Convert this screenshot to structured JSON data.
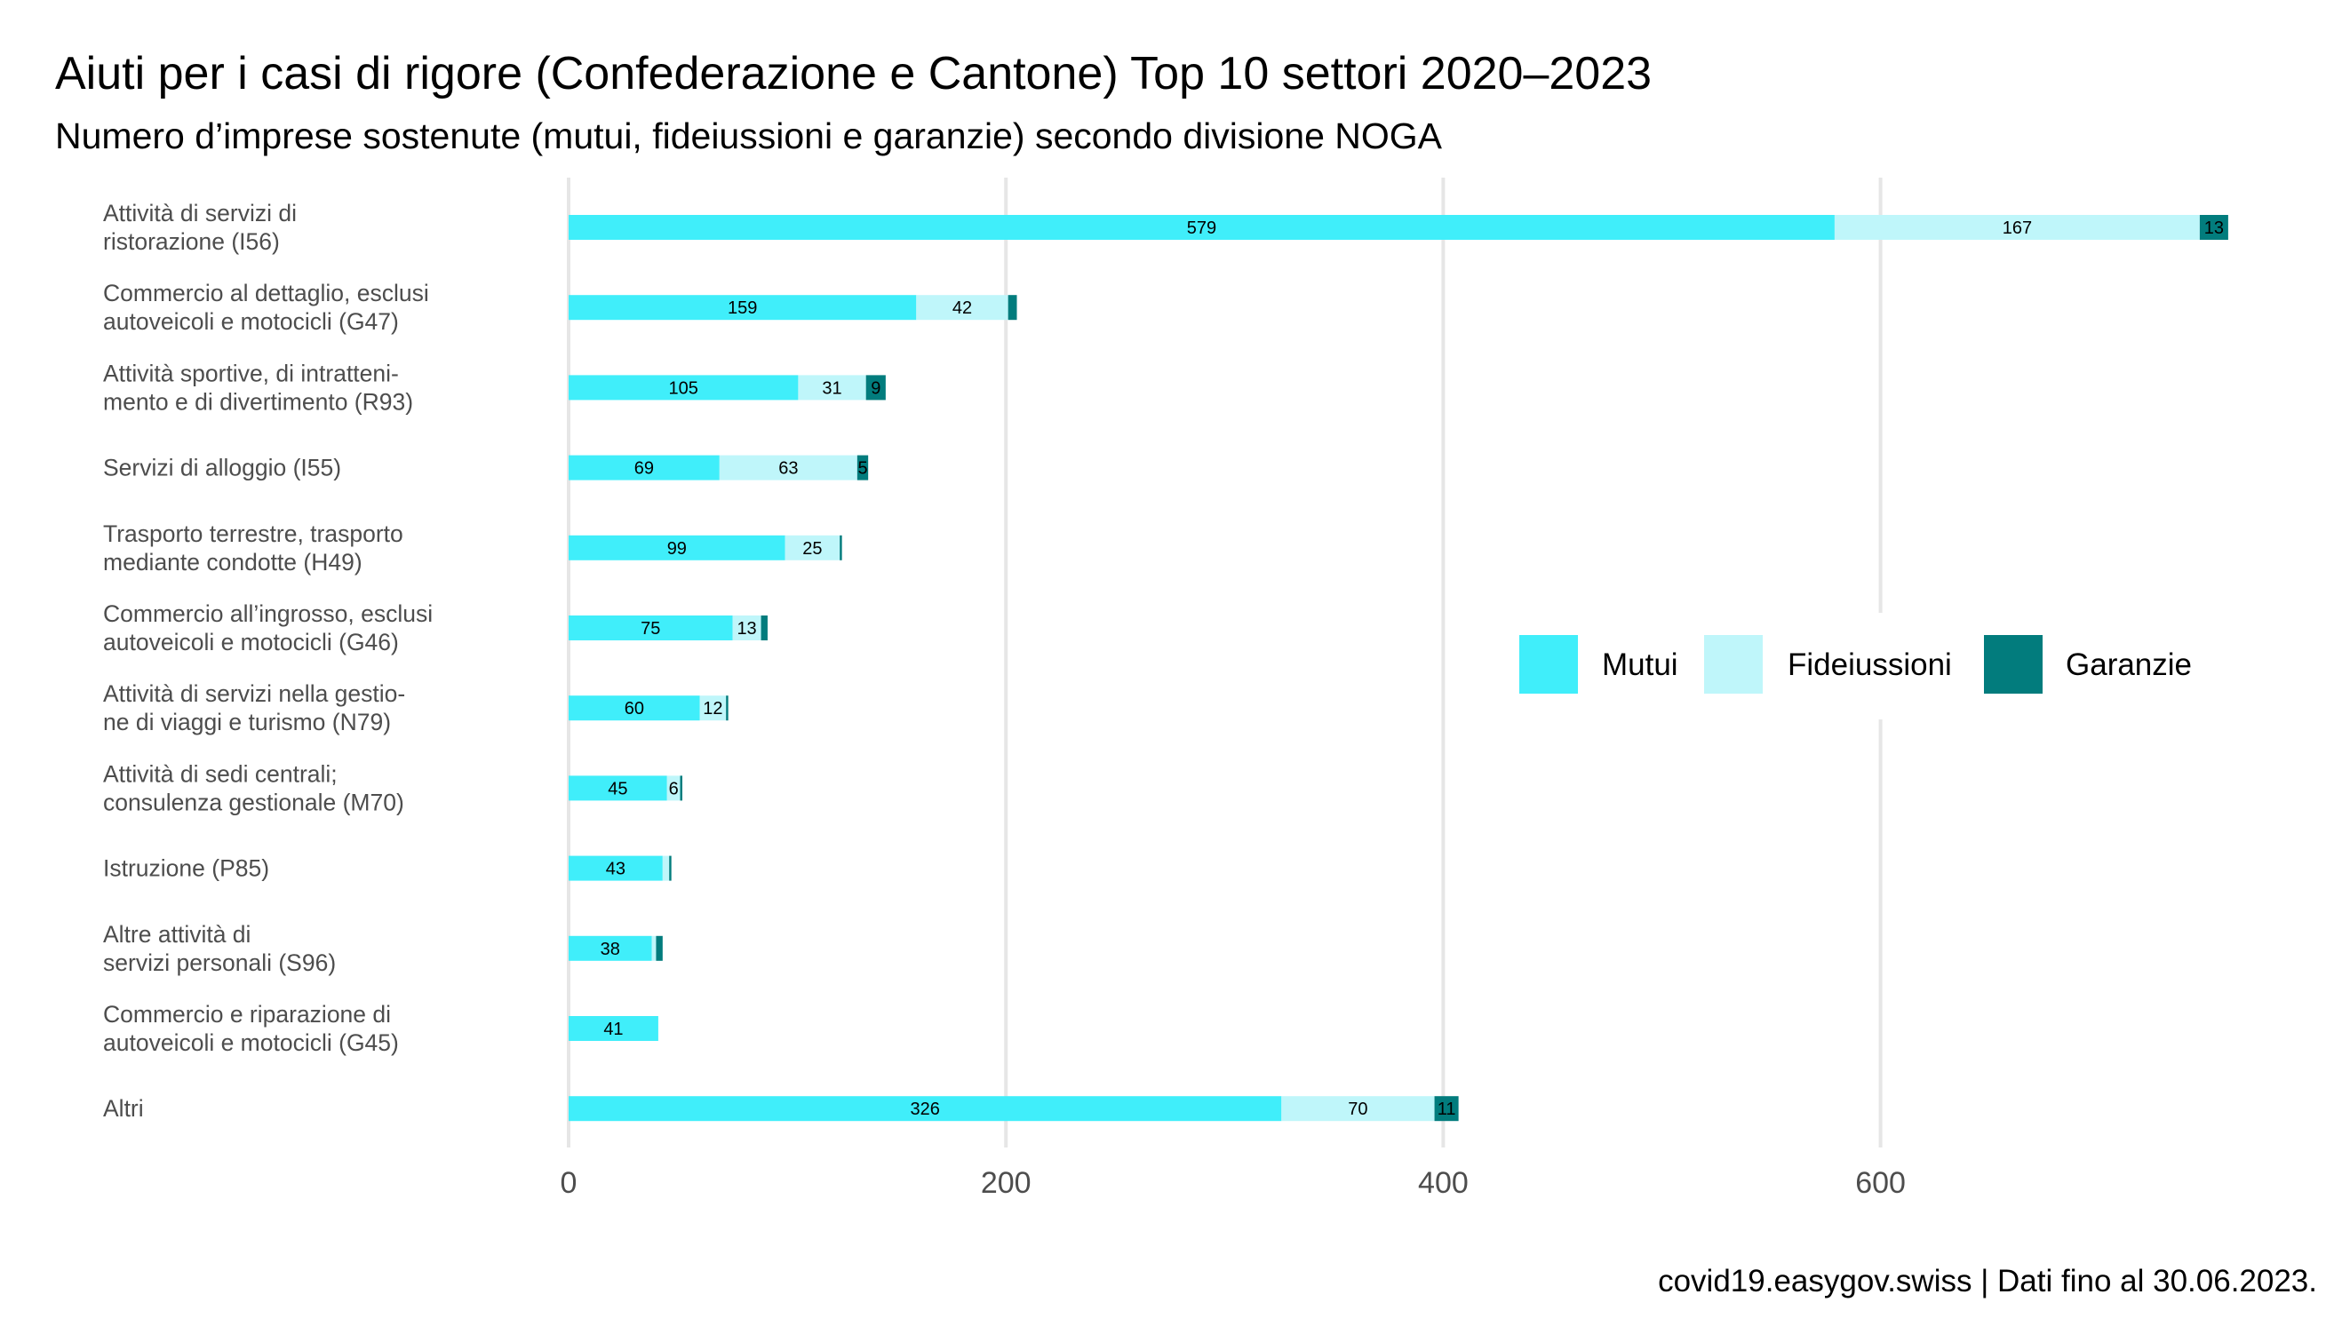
{
  "title": "Aiuti per i casi di rigore (Confederazione e Cantone) Top 10 settori 2020–2023",
  "subtitle": "Numero d’imprese sostenute (mutui, fideiussioni e garanzie) secondo divisione NOGA",
  "caption": "covid19.easygov.swiss | Dati fino al 30.06.2023.",
  "colors": {
    "Mutui": "#40eefa",
    "Fideiussioni": "#bff6fa",
    "Garanzie": "#027c7d",
    "grid": "#e6e6e6"
  },
  "chart_data": {
    "type": "bar",
    "orientation": "horizontal",
    "stacked": true,
    "categories": [
      [
        "Attività di servizi di",
        "ristorazione (I56)"
      ],
      [
        "Commercio al dettaglio, esclusi",
        "autoveicoli e motocicli (G47)"
      ],
      [
        "Attività sportive, di intratteni-",
        "mento e di divertimento (R93)"
      ],
      [
        "Servizi di alloggio (I55)"
      ],
      [
        "Trasporto terrestre, trasporto",
        "mediante condotte (H49)"
      ],
      [
        "Commercio all’ingrosso, esclusi",
        "autoveicoli e motocicli (G46)"
      ],
      [
        "Attività di servizi nella gestio-",
        "ne di viaggi e turismo (N79)"
      ],
      [
        "Attività di sedi centrali;",
        "consulenza gestionale (M70)"
      ],
      [
        "Istruzione (P85)"
      ],
      [
        "Altre attività di",
        "servizi personali (S96)"
      ],
      [
        "Commercio e riparazione di",
        "autoveicoli e motocicli (G45)"
      ],
      [
        "Altri"
      ]
    ],
    "series": [
      {
        "name": "Mutui",
        "values": [
          579,
          159,
          105,
          69,
          99,
          75,
          60,
          45,
          43,
          38,
          41,
          326
        ]
      },
      {
        "name": "Fideiussioni",
        "values": [
          167,
          42,
          31,
          63,
          25,
          13,
          12,
          6,
          3,
          2,
          0,
          70
        ]
      },
      {
        "name": "Garanzie",
        "values": [
          13,
          4,
          9,
          5,
          1,
          3,
          1,
          1,
          1,
          3,
          0,
          11
        ]
      }
    ],
    "data_labels": [
      [
        "579",
        "167",
        "13"
      ],
      [
        "159",
        "42",
        ""
      ],
      [
        "105",
        "31",
        "9"
      ],
      [
        "69",
        "63",
        "5"
      ],
      [
        "99",
        "25",
        ""
      ],
      [
        "75",
        "13",
        ""
      ],
      [
        "60",
        "12",
        ""
      ],
      [
        "45",
        "6",
        ""
      ],
      [
        "43",
        "",
        ""
      ],
      [
        "38",
        "",
        ""
      ],
      [
        "41",
        "",
        ""
      ],
      [
        "326",
        "70",
        "11"
      ]
    ],
    "xticks": [
      0,
      200,
      400,
      600
    ],
    "xlim": [
      0,
      765
    ],
    "xlabel": "",
    "ylabel": "",
    "grid": true,
    "legend": {
      "position": "right",
      "entries": [
        "Mutui",
        "Fideiussioni",
        "Garanzie"
      ]
    }
  }
}
